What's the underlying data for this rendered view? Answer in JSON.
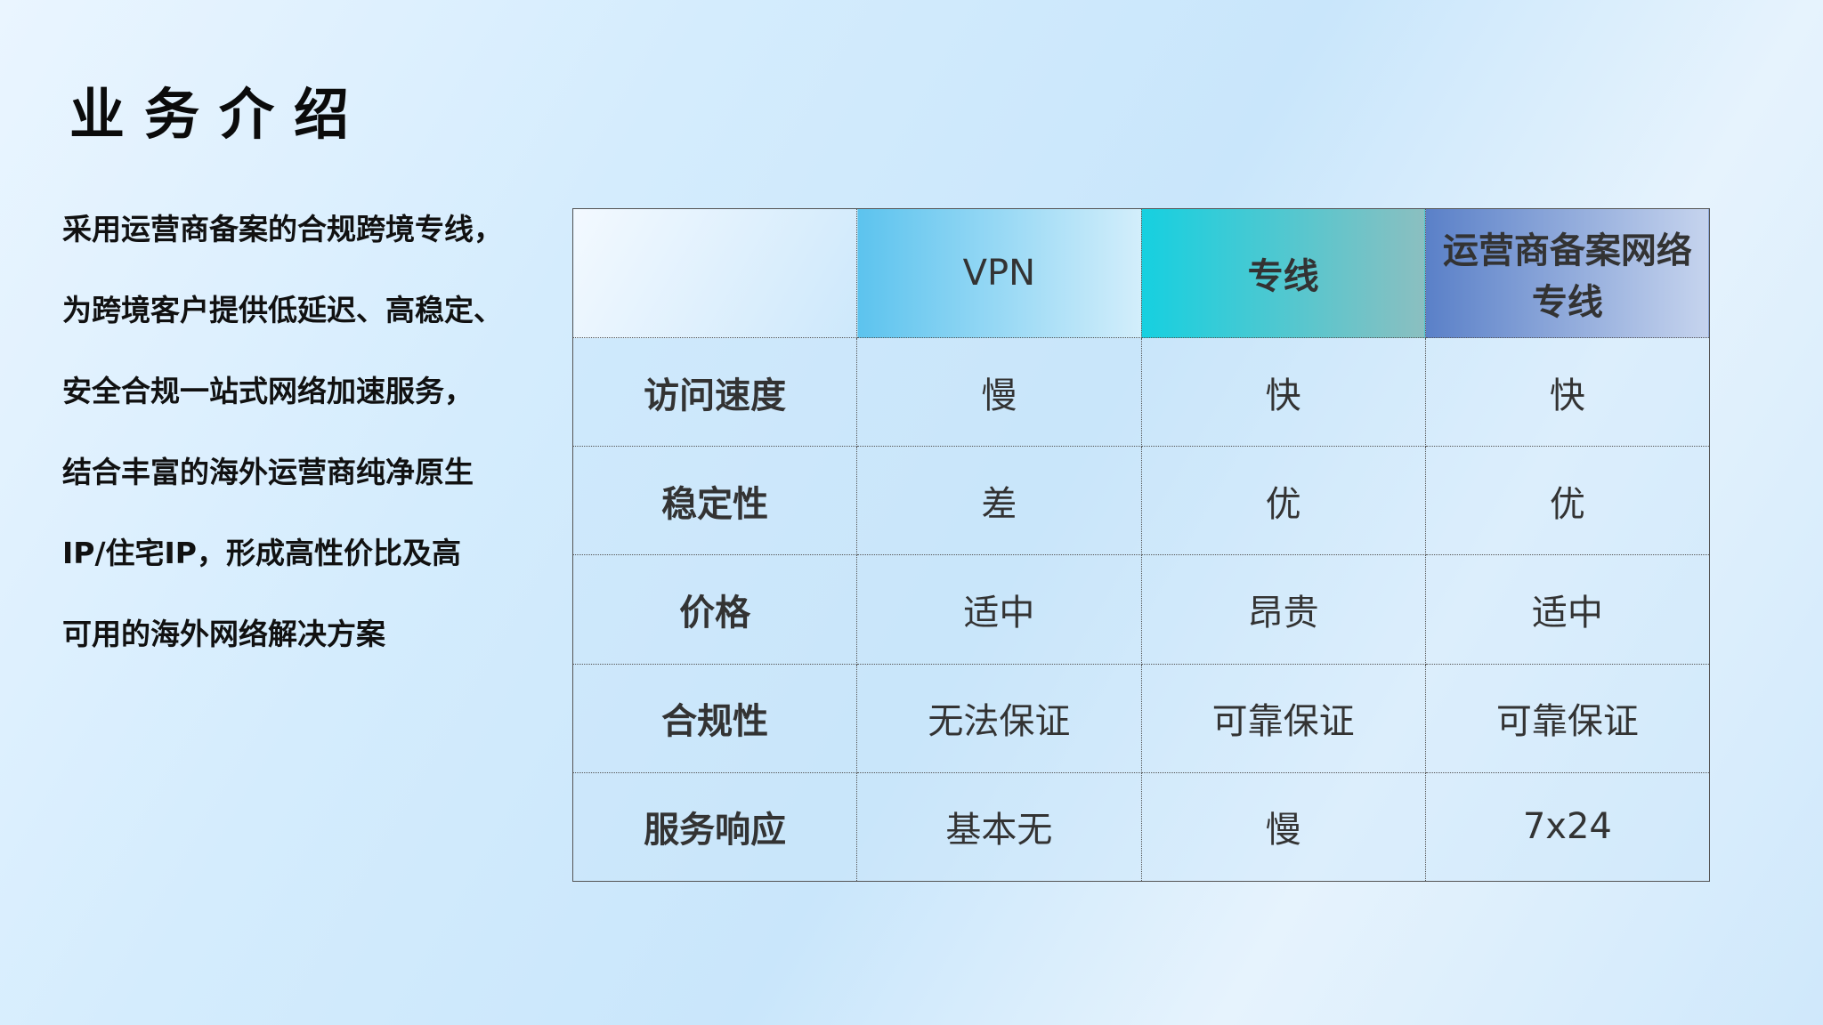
{
  "title": "业务介绍",
  "paragraph": [
    "采用运营商备案的合规跨境专线，",
    "为跨境客户提供低延迟、高稳定、",
    "安全合规一站式网络加速服务，",
    "结合丰富的海外运营商纯净原生",
    "IP/住宅IP，形成高性价比及高",
    "可用的海外网络解决方案"
  ],
  "table": {
    "headers": [
      "",
      "VPN",
      "专线",
      "运营商备案网络专线"
    ],
    "rows": [
      [
        "访问速度",
        "慢",
        "快",
        "快"
      ],
      [
        "稳定性",
        "差",
        "优",
        "优"
      ],
      [
        "价格",
        "适中",
        "昂贵",
        "适中"
      ],
      [
        "合规性",
        "无法保证",
        "可靠保证",
        "可靠保证"
      ],
      [
        "服务响应",
        "基本无",
        "慢",
        "7x24"
      ]
    ]
  },
  "colors": {
    "vpn_header": "#5cc3ee",
    "line_header": "#16d0e0",
    "carrier_header": "#5a80c8"
  }
}
